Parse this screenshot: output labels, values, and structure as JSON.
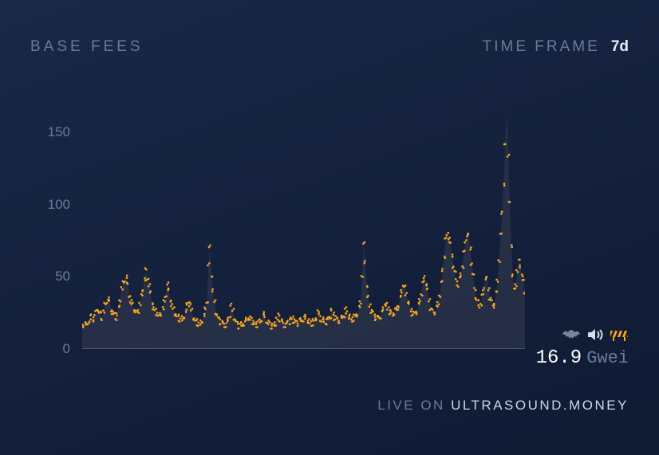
{
  "header": {
    "title": "BASE FEES",
    "timeframe_label": "TIME FRAME",
    "timeframe_value": "7d"
  },
  "chart": {
    "type": "scatter_area",
    "ylim": [
      0,
      160
    ],
    "yticks": [
      0,
      50,
      100,
      150
    ],
    "background": "#152040",
    "baseline_color": "#4a5874",
    "axis_label_color": "#6b7a99",
    "axis_label_fontsize": 17,
    "point_color": "#f5a623",
    "area_fill": "#353c50",
    "area_fill_opacity": 0.55,
    "point_radius": 1.3,
    "series": [
      15,
      17,
      18,
      16,
      19,
      20,
      22,
      21,
      23,
      25,
      28,
      26,
      24,
      22,
      26,
      30,
      33,
      35,
      32,
      28,
      25,
      23,
      22,
      24,
      28,
      35,
      42,
      45,
      48,
      50,
      44,
      38,
      33,
      30,
      28,
      26,
      25,
      27,
      31,
      36,
      42,
      48,
      54,
      50,
      44,
      38,
      33,
      28,
      26,
      25,
      24,
      23,
      25,
      28,
      32,
      38,
      45,
      40,
      35,
      30,
      27,
      25,
      23,
      22,
      21,
      20,
      21,
      23,
      26,
      30,
      34,
      30,
      26,
      22,
      20,
      19,
      18,
      17,
      18,
      20,
      23,
      27,
      34,
      58,
      70,
      52,
      40,
      32,
      26,
      22,
      20,
      19,
      18,
      17,
      17,
      18,
      20,
      24,
      30,
      26,
      22,
      19,
      17,
      16,
      16,
      17,
      18,
      19,
      20,
      22,
      21,
      20,
      19,
      18,
      17,
      17,
      18,
      19,
      21,
      24,
      22,
      20,
      18,
      17,
      16,
      16,
      17,
      18,
      20,
      23,
      21,
      19,
      18,
      17,
      17,
      18,
      19,
      20,
      21,
      20,
      19,
      18,
      18,
      19,
      20,
      21,
      22,
      21,
      20,
      19,
      18,
      18,
      19,
      20,
      22,
      25,
      23,
      21,
      20,
      19,
      19,
      20,
      21,
      23,
      26,
      24,
      22,
      21,
      20,
      20,
      21,
      22,
      24,
      27,
      25,
      23,
      22,
      21,
      21,
      22,
      23,
      25,
      28,
      32,
      52,
      72,
      60,
      45,
      35,
      30,
      27,
      25,
      23,
      22,
      21,
      22,
      23,
      25,
      28,
      32,
      30,
      28,
      26,
      25,
      24,
      25,
      26,
      28,
      31,
      35,
      40,
      45,
      42,
      38,
      34,
      30,
      27,
      25,
      24,
      25,
      27,
      30,
      34,
      39,
      45,
      50,
      46,
      40,
      34,
      29,
      26,
      25,
      26,
      28,
      32,
      38,
      45,
      55,
      65,
      75,
      80,
      78,
      72,
      65,
      58,
      52,
      48,
      45,
      48,
      52,
      58,
      66,
      75,
      80,
      78,
      70,
      60,
      50,
      42,
      36,
      32,
      30,
      32,
      36,
      42,
      50,
      48,
      42,
      36,
      32,
      30,
      32,
      38,
      48,
      62,
      78,
      95,
      115,
      140,
      168,
      135,
      100,
      72,
      52,
      40,
      45,
      55,
      60,
      58,
      52,
      46,
      40
    ]
  },
  "current": {
    "value": "16.9",
    "unit": "Gwei",
    "value_color": "#ffffff",
    "unit_color": "#6b7a99"
  },
  "icons": {
    "bat_color": "#7a8399",
    "speaker_color": "#d8dce6",
    "barrier_stripe_a": "#f5a623",
    "barrier_stripe_b": "#1a1a1a"
  },
  "footer": {
    "prefix": "LIVE ON ",
    "site": "ULTRASOUND.MONEY"
  }
}
